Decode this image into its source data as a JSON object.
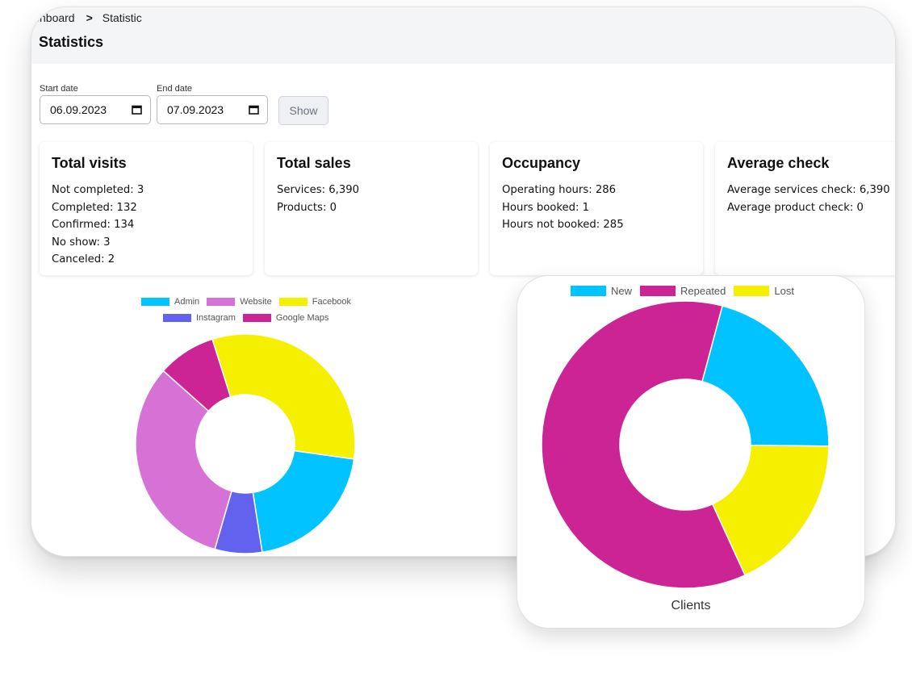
{
  "breadcrumb": {
    "parent": "shboard",
    "separator": ">",
    "current": "Statistic"
  },
  "page_title": "Statistics",
  "filters": {
    "start_label": "Start date",
    "start_value": "06.09.2023",
    "end_label": "End date",
    "end_value": "07.09.2023",
    "show_label": "Show"
  },
  "cards": [
    {
      "title": "Total visits",
      "lines": [
        "Not completed: 3",
        "Completed: 132",
        "Confirmed: 134",
        "No show: 3",
        "Canceled: 2"
      ]
    },
    {
      "title": "Total sales",
      "lines": [
        "Services: 6,390",
        "Products: 0"
      ]
    },
    {
      "title": "Occupancy",
      "lines": [
        "Operating hours: 286",
        "Hours booked: 1",
        "Hours not booked: 285"
      ]
    },
    {
      "title": "Average check",
      "lines": [
        "Average services check: 6,390",
        "Average product check: 0"
      ]
    }
  ],
  "chart_data": [
    {
      "type": "pie",
      "title": "",
      "labels": [
        "Admin",
        "Website",
        "Facebook",
        "Instagram",
        "Google Maps"
      ],
      "values": [
        19,
        30,
        30,
        6.5,
        8
      ],
      "colors": [
        "#00C3FF",
        "#D672D6",
        "#F5F000",
        "#6262EE",
        "#CC2494"
      ],
      "legend": "top"
    },
    {
      "type": "pie",
      "title": "Clients",
      "labels": [
        "New",
        "Repeated",
        "Lost"
      ],
      "values": [
        21,
        61,
        18
      ],
      "colors": [
        "#00C3FF",
        "#CC2494",
        "#F5F000"
      ],
      "legend": "top"
    }
  ]
}
